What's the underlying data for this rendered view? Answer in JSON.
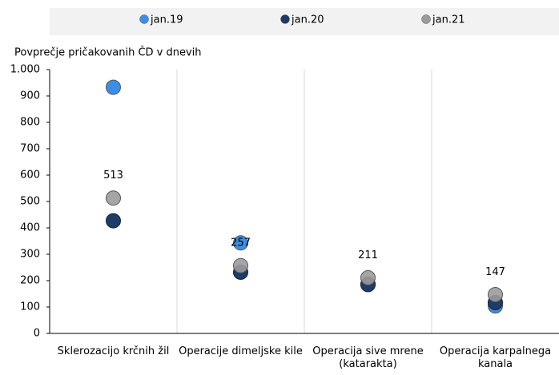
{
  "chart_data": {
    "type": "scatter",
    "y_axis_label": "Povprečje pričakovanih ČD v dnevih",
    "categories": [
      "Sklerozacijo krčnih žil",
      "Operacije dimeljske kile",
      "Operacija sive mrene (katarakta)",
      "Operacija karpalnega kanala"
    ],
    "series": [
      {
        "name": "jan.19",
        "color": "#3a8ee6",
        "values": [
          933,
          343,
          187,
          104
        ]
      },
      {
        "name": "jan.20",
        "color": "#1f3b66",
        "values": [
          427,
          232,
          185,
          117
        ]
      },
      {
        "name": "jan.21",
        "color": "#9b9b9b",
        "values": [
          513,
          257,
          211,
          147
        ],
        "show_labels": true
      }
    ],
    "ylim": [
      0,
      1000
    ],
    "yticks": [
      0,
      100,
      200,
      300,
      400,
      500,
      600,
      700,
      800,
      900,
      {
        "value": 1000,
        "label": "1.000"
      }
    ],
    "grid": true,
    "legend": "top"
  }
}
